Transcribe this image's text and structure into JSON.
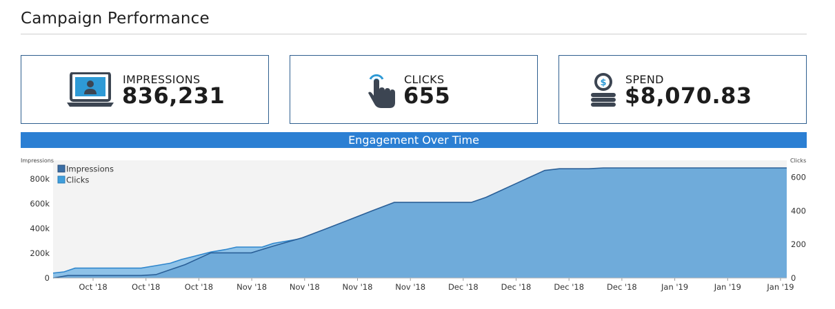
{
  "page": {
    "title": "Campaign Performance"
  },
  "kpis": [
    {
      "label": "IMPRESSIONS",
      "value": "836,231",
      "icon": "laptop-user-icon"
    },
    {
      "label": "CLICKS",
      "value": "655",
      "icon": "pointer-hand-icon"
    },
    {
      "label": "SPEND",
      "value": "$8,070.83",
      "icon": "coin-stack-icon"
    }
  ],
  "section": {
    "title": "Engagement Over Time"
  },
  "colors": {
    "accent": "#2b7fd3",
    "impressions": "#3a6ea5",
    "clicks": "#3f9edb",
    "area": "#6fabda",
    "plot_bg": "#f3f3f3",
    "kpi_border": "#2d5e8e",
    "icon_dark": "#3c4552",
    "icon_blue": "#2e9ad6"
  },
  "chart_data": {
    "type": "area",
    "ylabel_left": "Impressions",
    "ylabel_right": "Clicks",
    "x_tick_labels": [
      "Oct '18",
      "Oct '18",
      "Oct '18",
      "Nov '18",
      "Nov '18",
      "Nov '18",
      "Nov '18",
      "Dec '18",
      "Dec '18",
      "Dec '18",
      "Dec '18",
      "Jan '19",
      "Jan '19",
      "Jan '19"
    ],
    "y_left_ticks": [
      "0",
      "200k",
      "400k",
      "600k",
      "800k"
    ],
    "y_right_ticks": [
      "0",
      "200",
      "400",
      "600"
    ],
    "ylim_left": [
      0,
      950000
    ],
    "ylim_right": [
      0,
      700
    ],
    "legend": [
      "Impressions",
      "Clicks"
    ],
    "legend_position": "top-left",
    "series": [
      {
        "name": "Impressions",
        "axis": "left",
        "x": [
          0,
          1.5,
          3,
          4.5,
          6,
          8.5,
          10,
          12,
          14,
          16,
          17.5,
          19.5,
          21.5,
          23.5,
          25,
          27,
          28.5,
          30,
          32,
          34,
          35.5,
          37,
          38.5,
          40,
          42,
          43.5,
          45,
          46.5,
          48.5,
          50.5,
          52.5,
          54.5,
          57,
          59,
          61,
          63,
          65,
          67,
          69,
          71,
          73,
          75,
          77,
          79,
          81,
          82.5,
          85,
          87.5,
          90,
          92.5,
          95,
          97.5,
          100
        ],
        "values": [
          40000,
          50000,
          80000,
          80000,
          80000,
          80000,
          80000,
          80000,
          100000,
          120000,
          150000,
          180000,
          210000,
          230000,
          250000,
          250000,
          250000,
          280000,
          300000,
          320000,
          350000,
          370000,
          390000,
          420000,
          430000,
          460000,
          480000,
          500000,
          520000,
          530000,
          530000,
          530000,
          530000,
          570000,
          610000,
          650000,
          680000,
          710000,
          740000,
          760000,
          800000,
          830000,
          836231,
          836231,
          836231,
          836231,
          836231,
          836231,
          836231,
          836231,
          836231,
          836231,
          836231
        ]
      },
      {
        "name": "Clicks",
        "axis": "right",
        "x": [
          0,
          2,
          4,
          6,
          8.5,
          10,
          12,
          14,
          16,
          18,
          21.5,
          25,
          27,
          30,
          34,
          37,
          40,
          43.5,
          46.5,
          50.5,
          52.5,
          54.5,
          57,
          59,
          61,
          63,
          65,
          67,
          69,
          71,
          73,
          75,
          77,
          79,
          81,
          82.5,
          85,
          87.5,
          90,
          92.5,
          95,
          97.5,
          100
        ],
        "values": [
          0,
          15,
          15,
          15,
          15,
          15,
          15,
          20,
          50,
          80,
          150,
          150,
          150,
          190,
          240,
          290,
          340,
          400,
          450,
          450,
          450,
          450,
          450,
          480,
          520,
          560,
          600,
          640,
          650,
          650,
          650,
          655,
          655,
          655,
          655,
          655,
          655,
          655,
          655,
          655,
          655,
          655,
          655
        ]
      }
    ]
  }
}
